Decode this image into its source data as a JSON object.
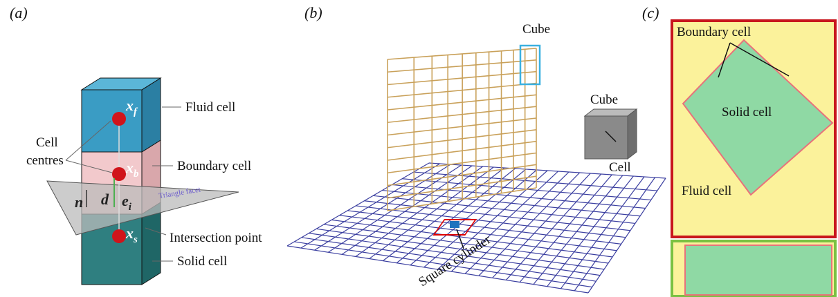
{
  "panels": [
    {
      "label": "(a)",
      "annotations": {
        "fluid": "Fluid cell",
        "boundary": "Boundary cell",
        "centres": [
          "Cell",
          "centres"
        ],
        "facet": "Triangle facet",
        "intersection": "Intersection point",
        "solid": "Solid cell"
      },
      "symbols": {
        "xf": {
          "base": "x",
          "sub": "f"
        },
        "xb": {
          "base": "x",
          "sub": "b"
        },
        "xs": {
          "base": "x",
          "sub": "s"
        },
        "d": "d",
        "ei": {
          "base": "e",
          "sub": "i"
        },
        "n": "n"
      }
    },
    {
      "label": "(b)",
      "annotations": {
        "cube_grid": "Cube",
        "cube": "Cube",
        "cell": "Cell",
        "cylinder": "Square cylinder"
      }
    },
    {
      "label": "(c)",
      "annotations": {
        "boundary": "Boundary cell",
        "solid": "Solid cell",
        "fluid": "Fluid cell"
      }
    }
  ]
}
